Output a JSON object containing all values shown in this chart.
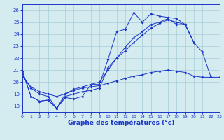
{
  "title": "Graphe des températures (°c)",
  "bg_color": "#d4ecf0",
  "grid_color": "#a8cdd8",
  "line_color": "#1a35c8",
  "xlim": [
    0,
    23
  ],
  "ylim": [
    17.5,
    26.5
  ],
  "xticks": [
    0,
    1,
    2,
    3,
    4,
    5,
    6,
    7,
    8,
    9,
    10,
    11,
    12,
    13,
    14,
    15,
    16,
    17,
    18,
    19,
    20,
    21,
    22,
    23
  ],
  "yticks": [
    18,
    19,
    20,
    21,
    22,
    23,
    24,
    25,
    26
  ],
  "hours": [
    0,
    1,
    2,
    3,
    4,
    5,
    6,
    7,
    8,
    9,
    10,
    11,
    12,
    13,
    14,
    15,
    16,
    17,
    18,
    19,
    20,
    21,
    22,
    23
  ],
  "line1": [
    20.9,
    18.8,
    18.4,
    18.5,
    17.8,
    18.7,
    18.6,
    18.8,
    19.8,
    19.8,
    21.9,
    24.2,
    24.4,
    25.8,
    25.0,
    25.7,
    25.5,
    25.4,
    25.3,
    24.8,
    23.3,
    null,
    null,
    null
  ],
  "line2": [
    20.9,
    18.8,
    18.4,
    18.5,
    17.8,
    18.8,
    19.0,
    19.2,
    19.3,
    19.5,
    21.2,
    22.0,
    22.6,
    23.3,
    23.9,
    24.5,
    24.9,
    25.2,
    25.0,
    24.8,
    23.3,
    null,
    null,
    null
  ],
  "line3": [
    20.5,
    19.6,
    19.2,
    19.0,
    18.8,
    19.0,
    19.3,
    19.5,
    19.6,
    19.7,
    19.9,
    20.1,
    20.3,
    20.5,
    20.6,
    20.8,
    20.9,
    21.0,
    20.9,
    20.8,
    20.5,
    20.4,
    20.4,
    20.4
  ],
  "line4": [
    20.5,
    19.5,
    19.0,
    18.8,
    17.8,
    19.0,
    19.4,
    19.6,
    19.8,
    20.0,
    21.0,
    22.0,
    22.9,
    23.7,
    24.2,
    24.8,
    25.0,
    25.3,
    24.8,
    24.8,
    23.3,
    22.5,
    20.4,
    null
  ]
}
